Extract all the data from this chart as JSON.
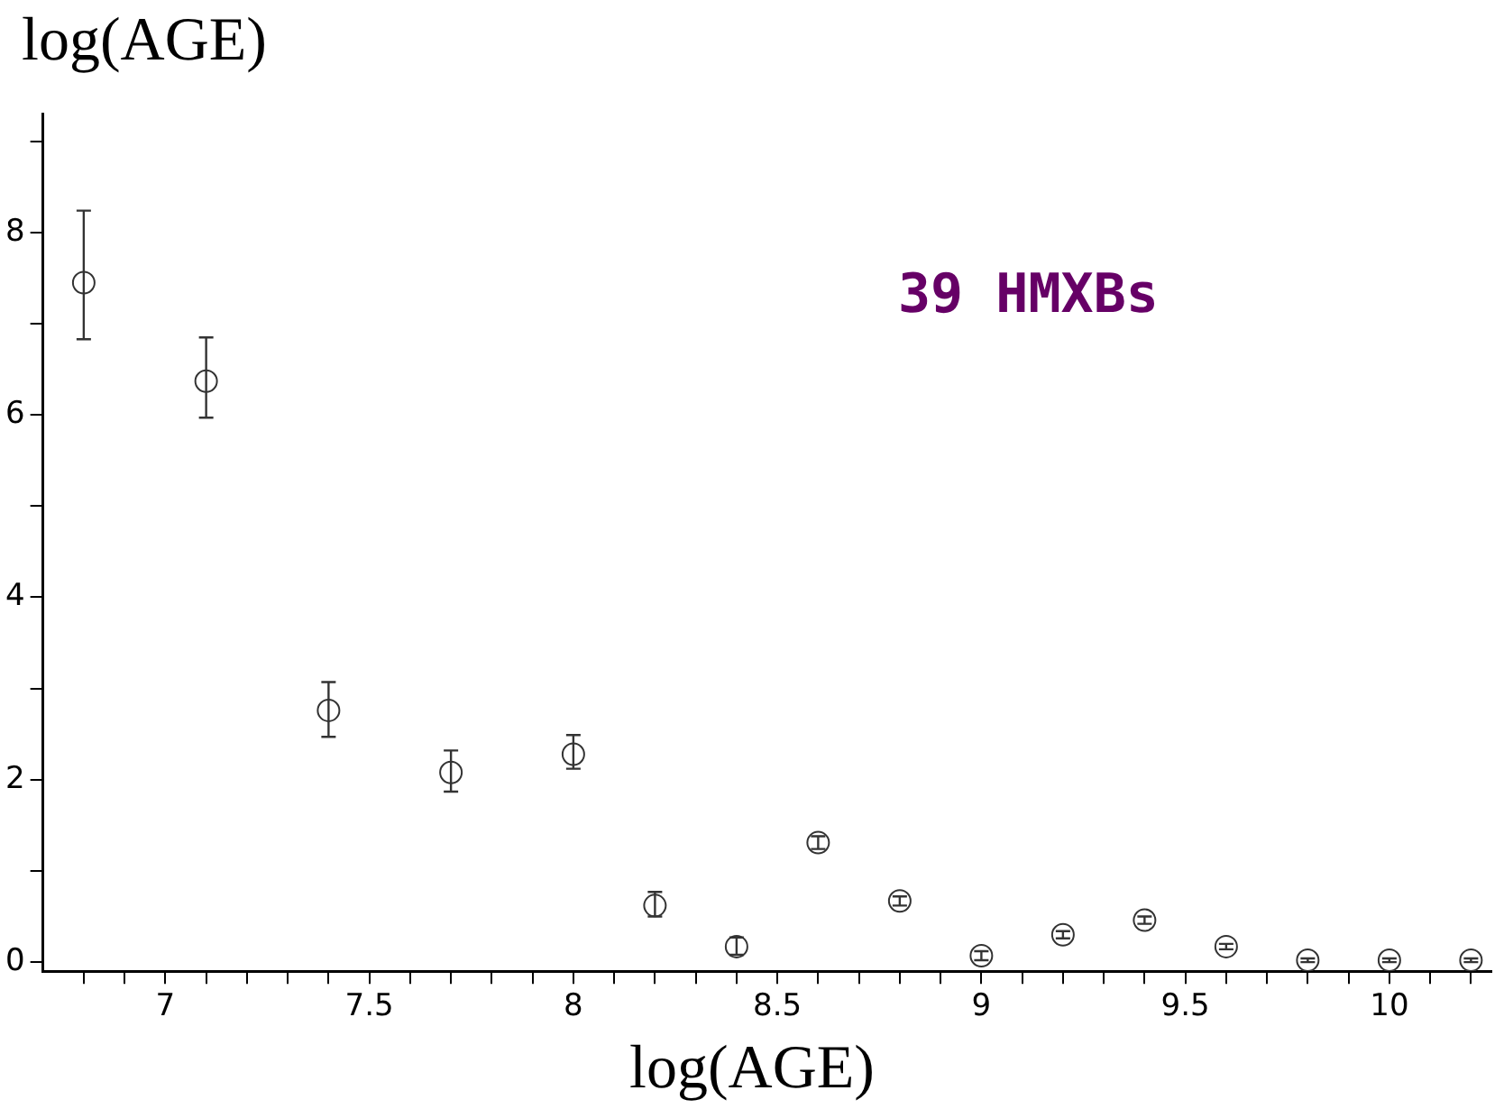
{
  "chart_data": {
    "type": "scatter",
    "xlabel": "log(AGE)",
    "ylabel": "log(AGE)",
    "annotations": [
      "39 HMXBs"
    ],
    "x": [
      6.8,
      7.1,
      7.4,
      7.7,
      8.0,
      8.2,
      8.4,
      8.6,
      8.8,
      9.0,
      9.2,
      9.4,
      9.6,
      9.8,
      10.0,
      10.2
    ],
    "series": [
      {
        "color": "#333333",
        "values": [
          7.45,
          6.37,
          2.76,
          2.08,
          2.28,
          0.62,
          0.17,
          1.31,
          0.67,
          0.07,
          0.3,
          0.46,
          0.17,
          0.02,
          0.02,
          0.02
        ],
        "errors": [
          [
            6.83,
            8.24
          ],
          [
            5.97,
            6.85
          ],
          [
            2.47,
            3.07
          ],
          [
            1.87,
            2.32
          ],
          [
            2.12,
            2.49
          ],
          [
            0.5,
            0.77
          ],
          [
            0.08,
            0.27
          ],
          [
            1.24,
            1.38
          ],
          [
            0.62,
            0.72
          ],
          [
            0.02,
            0.12
          ],
          [
            0.26,
            0.34
          ],
          [
            0.42,
            0.5
          ],
          [
            0.14,
            0.2
          ],
          [
            0.0,
            0.04
          ],
          [
            0.0,
            0.04
          ],
          [
            0.0,
            0.04
          ]
        ]
      }
    ],
    "xlim": [
      6.7,
      10.25
    ],
    "ylim": [
      -0.1,
      9.3
    ],
    "xticks": [
      {
        "value": 6.8,
        "label": null
      },
      {
        "value": 6.9,
        "label": null
      },
      7,
      {
        "value": 7.1,
        "label": null
      },
      {
        "value": 7.2,
        "label": null
      },
      {
        "value": 7.3,
        "label": null
      },
      {
        "value": 7.4,
        "label": null
      },
      7.5,
      {
        "value": 7.6,
        "label": null
      },
      {
        "value": 7.7,
        "label": null
      },
      {
        "value": 7.8,
        "label": null
      },
      {
        "value": 7.9,
        "label": null
      },
      8,
      {
        "value": 8.1,
        "label": null
      },
      {
        "value": 8.2,
        "label": null
      },
      {
        "value": 8.3,
        "label": null
      },
      {
        "value": 8.4,
        "label": null
      },
      8.5,
      {
        "value": 8.6,
        "label": null
      },
      {
        "value": 8.7,
        "label": null
      },
      {
        "value": 8.8,
        "label": null
      },
      {
        "value": 8.9,
        "label": null
      },
      9,
      {
        "value": 9.1,
        "label": null
      },
      {
        "value": 9.2,
        "label": null
      },
      {
        "value": 9.3,
        "label": null
      },
      {
        "value": 9.4,
        "label": null
      },
      9.5,
      {
        "value": 9.6,
        "label": null
      },
      {
        "value": 9.7,
        "label": null
      },
      {
        "value": 9.8,
        "label": null
      },
      {
        "value": 9.9,
        "label": null
      },
      10,
      {
        "value": 10.1,
        "label": null
      },
      {
        "value": 10.2,
        "label": null
      }
    ],
    "yticks": [
      0,
      {
        "value": 1,
        "label": null
      },
      2,
      {
        "value": 3,
        "label": null
      },
      4,
      {
        "value": 5,
        "label": null
      },
      6,
      {
        "value": 7,
        "label": null
      },
      8,
      {
        "value": 9,
        "label": null
      }
    ],
    "marker": "circle",
    "grid": false,
    "legend": false
  }
}
